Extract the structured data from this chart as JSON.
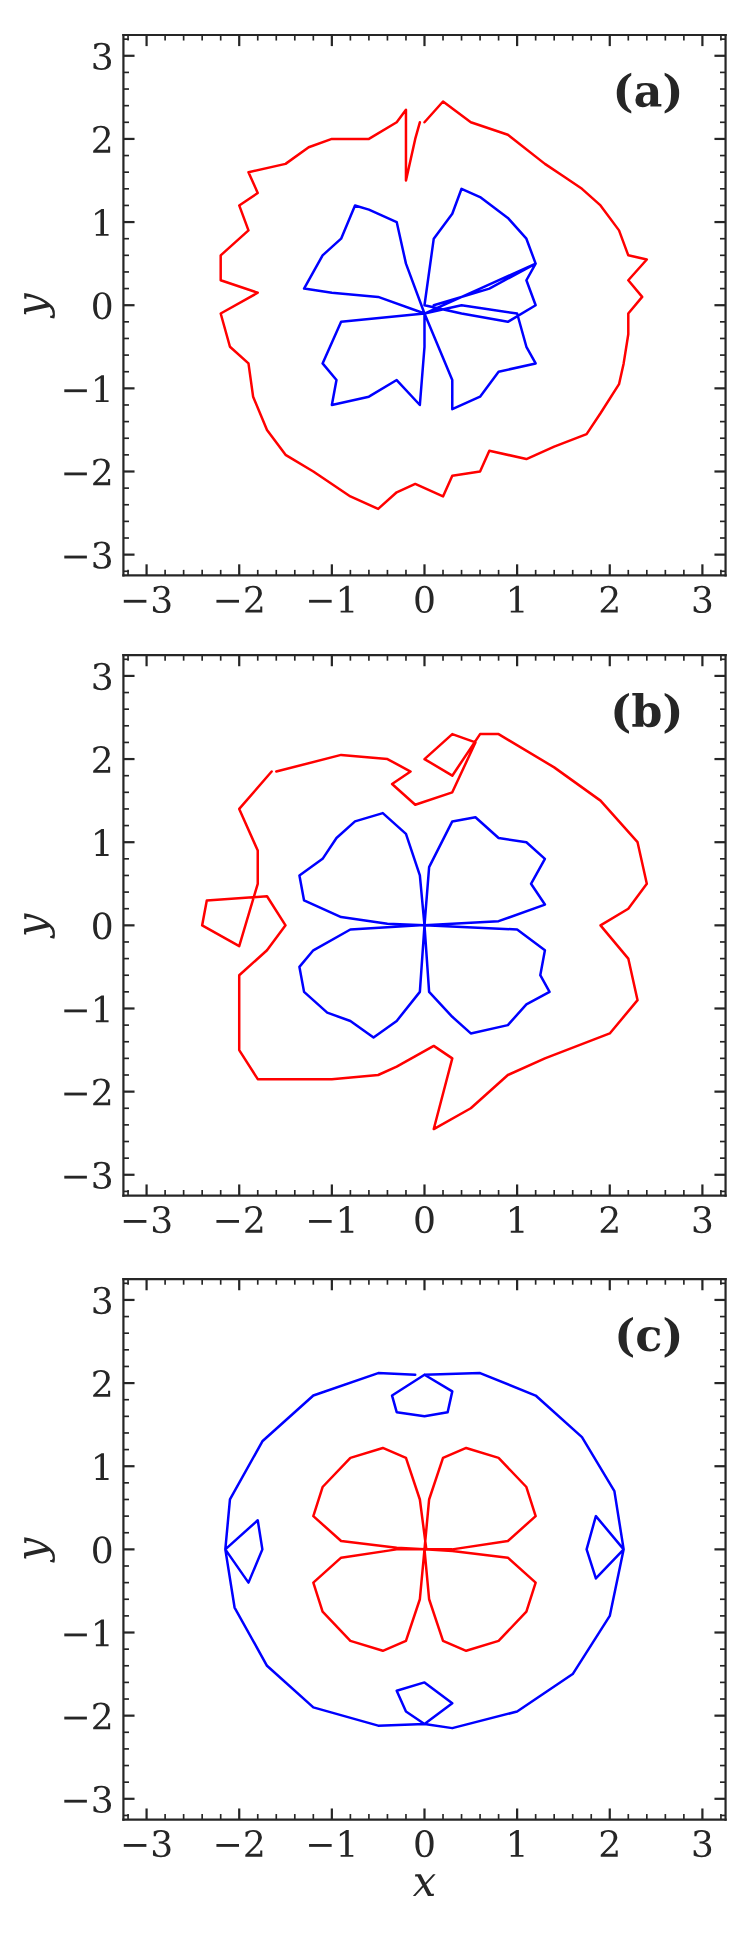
{
  "chart_data": [
    {
      "type": "line",
      "ylabel": "y",
      "annotations": [
        "(a)"
      ],
      "xlim": [
        -3.25,
        3.25
      ],
      "ylim": [
        -3.25,
        3.25
      ],
      "xticks": [
        {
          "value": -3,
          "label": "−3"
        },
        {
          "value": -2,
          "label": "−2"
        },
        {
          "value": -1,
          "label": "−1"
        },
        0,
        1,
        2,
        3
      ],
      "yticks": [
        {
          "value": -3,
          "label": "−3"
        },
        {
          "value": -2,
          "label": "−2"
        },
        {
          "value": -1,
          "label": "−1"
        },
        0,
        1,
        2,
        3
      ],
      "grid": false,
      "legend": false,
      "series": [
        {
          "color": "#ff0000",
          "x": [
            0.0,
            0.2,
            0.5,
            0.9,
            1.3,
            1.5,
            1.7,
            1.9,
            2.1,
            2.2,
            2.4,
            2.2,
            2.35,
            2.2,
            2.2,
            2.15,
            2.1,
            1.9,
            1.75,
            1.4,
            1.1,
            0.7,
            0.6,
            0.3,
            0.2,
            -0.1,
            -0.3,
            -0.5,
            -0.8,
            -1.2,
            -1.5,
            -1.7,
            -1.85,
            -1.9,
            -2.1,
            -2.2,
            -1.8,
            -2.2,
            -2.2,
            -1.9,
            -2.0,
            -1.8,
            -1.9,
            -1.5,
            -1.25,
            -1.0,
            -0.6,
            -0.3,
            -0.2,
            -0.2,
            -0.1,
            -0.05
          ],
          "values": [
            2.2,
            2.45,
            2.2,
            2.05,
            1.7,
            1.55,
            1.4,
            1.2,
            0.9,
            0.6,
            0.55,
            0.3,
            0.1,
            -0.1,
            -0.35,
            -0.7,
            -0.95,
            -1.3,
            -1.55,
            -1.7,
            -1.85,
            -1.75,
            -2.0,
            -2.05,
            -2.3,
            -2.15,
            -2.25,
            -2.45,
            -2.3,
            -2.0,
            -1.8,
            -1.5,
            -1.1,
            -0.7,
            -0.5,
            -0.1,
            0.15,
            0.3,
            0.6,
            0.9,
            1.2,
            1.35,
            1.6,
            1.7,
            1.9,
            2.0,
            2.0,
            2.2,
            2.35,
            1.5,
            2.0,
            2.2
          ]
        },
        {
          "color": "#0000ff",
          "x": [
            0.0,
            -0.2,
            -0.3,
            -0.6,
            -0.75,
            -0.9,
            -1.1,
            -1.3,
            -1.0,
            -0.5,
            0.0,
            -0.9,
            -1.1,
            -0.95,
            -1.0,
            -0.6,
            -0.3,
            -0.05,
            0.0,
            0.0,
            0.3,
            0.3,
            0.6,
            0.8,
            1.2,
            1.1,
            1.0,
            0.4,
            0.0,
            0.6,
            1.2,
            1.1,
            1.2,
            0.9,
            0.4,
            0.0,
            0.1,
            0.3,
            0.4,
            0.6,
            0.9,
            1.1,
            1.2,
            0.7,
            0.1
          ],
          "values": [
            -0.1,
            0.5,
            1.0,
            1.15,
            1.2,
            0.8,
            0.6,
            0.2,
            0.15,
            0.1,
            -0.1,
            -0.2,
            -0.7,
            -0.9,
            -1.2,
            -1.1,
            -0.9,
            -1.2,
            -0.5,
            -0.1,
            -0.9,
            -1.25,
            -1.1,
            -0.8,
            -0.7,
            -0.5,
            -0.1,
            0.0,
            -0.1,
            0.2,
            0.5,
            0.3,
            0.0,
            -0.2,
            -0.1,
            0.0,
            0.8,
            1.1,
            1.4,
            1.3,
            1.05,
            0.8,
            0.5,
            0.2,
            0.0
          ]
        }
      ]
    },
    {
      "type": "line",
      "ylabel": "y",
      "annotations": [
        "(b)"
      ],
      "xlim": [
        -3.25,
        3.25
      ],
      "ylim": [
        -3.25,
        3.25
      ],
      "xticks": [
        {
          "value": -3,
          "label": "−3"
        },
        {
          "value": -2,
          "label": "−2"
        },
        {
          "value": -1,
          "label": "−1"
        },
        0,
        1,
        2,
        3
      ],
      "yticks": [
        {
          "value": -3,
          "label": "−3"
        },
        {
          "value": -2,
          "label": "−2"
        },
        {
          "value": -1,
          "label": "−1"
        },
        0,
        1,
        2,
        3
      ],
      "grid": false,
      "legend": false,
      "series": [
        {
          "color": "#ff0000",
          "x": [
            -1.6,
            -0.9,
            -0.4,
            -0.15,
            -0.35,
            -0.1,
            0.3,
            0.55,
            0.3,
            0.0,
            0.3,
            0.6,
            0.8,
            1.4,
            1.9,
            2.3,
            2.4,
            2.2,
            1.9,
            2.2,
            2.3,
            2.0,
            1.3,
            0.9,
            0.5,
            0.1,
            0.3,
            0.1,
            -0.3,
            -0.5,
            -1.0,
            -1.8,
            -2.0,
            -2.0,
            -1.7,
            -1.5,
            -1.7,
            -2.35,
            -2.4,
            -2.0,
            -1.8,
            -1.8,
            -2.0,
            -1.65
          ],
          "values": [
            1.85,
            2.05,
            2.0,
            1.85,
            1.7,
            1.45,
            1.6,
            2.2,
            2.3,
            2.0,
            1.8,
            2.3,
            2.3,
            1.9,
            1.5,
            1.0,
            0.5,
            0.2,
            0.0,
            -0.4,
            -0.9,
            -1.3,
            -1.6,
            -1.8,
            -2.2,
            -2.45,
            -1.6,
            -1.45,
            -1.7,
            -1.8,
            -1.85,
            -1.85,
            -1.5,
            -0.6,
            -0.3,
            0.0,
            0.35,
            0.3,
            0.0,
            -0.25,
            0.5,
            0.9,
            1.4,
            1.85
          ]
        },
        {
          "color": "#0000ff",
          "x": [
            0.0,
            -0.05,
            -0.2,
            -0.45,
            -0.75,
            -0.95,
            -1.1,
            -1.35,
            -1.3,
            -0.9,
            -0.4,
            0.0,
            0.05,
            0.3,
            0.55,
            0.8,
            1.1,
            1.3,
            1.15,
            1.3,
            0.8,
            0.0,
            1.0,
            1.3,
            1.25,
            1.35,
            1.1,
            0.9,
            0.5,
            0.3,
            0.05,
            0.0,
            -0.05,
            -0.3,
            -0.55,
            -0.8,
            -1.05,
            -1.3,
            -1.35,
            -1.2,
            -0.8,
            -0.05
          ],
          "values": [
            0.0,
            0.6,
            1.1,
            1.35,
            1.25,
            1.05,
            0.8,
            0.6,
            0.3,
            0.1,
            0.02,
            0.0,
            0.7,
            1.25,
            1.3,
            1.05,
            1.0,
            0.8,
            0.5,
            0.25,
            0.05,
            0.0,
            -0.05,
            -0.3,
            -0.6,
            -0.8,
            -0.95,
            -1.2,
            -1.3,
            -1.1,
            -0.8,
            0.0,
            -0.8,
            -1.15,
            -1.35,
            -1.15,
            -1.05,
            -0.8,
            -0.5,
            -0.3,
            -0.05,
            0.0
          ]
        }
      ]
    },
    {
      "type": "line",
      "xlabel": "x",
      "ylabel": "y",
      "annotations": [
        "(c)"
      ],
      "xlim": [
        -3.25,
        3.25
      ],
      "ylim": [
        -3.25,
        3.25
      ],
      "xticks": [
        {
          "value": -3,
          "label": "−3"
        },
        {
          "value": -2,
          "label": "−2"
        },
        {
          "value": -1,
          "label": "−1"
        },
        0,
        1,
        2,
        3
      ],
      "yticks": [
        {
          "value": -3,
          "label": "−3"
        },
        {
          "value": -2,
          "label": "−2"
        },
        {
          "value": -1,
          "label": "−1"
        },
        0,
        1,
        2,
        3
      ],
      "grid": false,
      "legend": false,
      "series": [
        {
          "color": "#0000ff",
          "x": [
            0.0,
            0.3,
            0.25,
            0.0,
            -0.3,
            -0.35,
            0.0,
            0.6,
            1.2,
            1.7,
            2.05,
            2.15,
            1.85,
            1.75,
            1.85,
            2.15,
            2.0,
            1.6,
            1.0,
            0.3,
            0.0,
            0.3,
            0.0,
            -0.3,
            -0.2,
            0.0,
            -0.5,
            -1.2,
            -1.7,
            -2.05,
            -2.15,
            -1.8,
            -1.75,
            -1.9,
            -2.15,
            -2.1,
            -1.75,
            -1.2,
            -0.5,
            -0.1
          ],
          "values": [
            2.1,
            1.9,
            1.65,
            1.6,
            1.65,
            1.85,
            2.1,
            2.12,
            1.85,
            1.35,
            0.7,
            0.0,
            0.4,
            0.0,
            -0.35,
            0.0,
            -0.8,
            -1.5,
            -1.95,
            -2.15,
            -2.1,
            -1.85,
            -1.6,
            -1.7,
            -1.95,
            -2.1,
            -2.12,
            -1.9,
            -1.4,
            -0.7,
            0.0,
            0.35,
            0.0,
            -0.4,
            0.0,
            0.6,
            1.3,
            1.85,
            2.12,
            2.1
          ]
        },
        {
          "color": "#ff0000",
          "x": [
            0.0,
            0.05,
            0.2,
            0.45,
            0.8,
            1.1,
            1.2,
            0.9,
            0.3,
            0.0,
            0.3,
            0.9,
            1.2,
            1.1,
            0.8,
            0.45,
            0.2,
            0.05,
            0.0,
            -0.05,
            -0.2,
            -0.45,
            -0.8,
            -1.1,
            -1.2,
            -0.9,
            -0.3,
            0.0,
            -0.3,
            -0.9,
            -1.2,
            -1.1,
            -0.8,
            -0.45,
            -0.2,
            -0.05,
            0.02
          ],
          "values": [
            0.0,
            0.6,
            1.1,
            1.22,
            1.1,
            0.75,
            0.4,
            0.1,
            0.0,
            0.0,
            -0.02,
            -0.1,
            -0.4,
            -0.75,
            -1.1,
            -1.22,
            -1.1,
            -0.6,
            0.0,
            -0.6,
            -1.1,
            -1.22,
            -1.1,
            -0.75,
            -0.4,
            -0.1,
            0.0,
            0.0,
            0.02,
            0.1,
            0.4,
            0.75,
            1.1,
            1.22,
            1.1,
            0.6,
            0.0
          ]
        }
      ]
    }
  ]
}
